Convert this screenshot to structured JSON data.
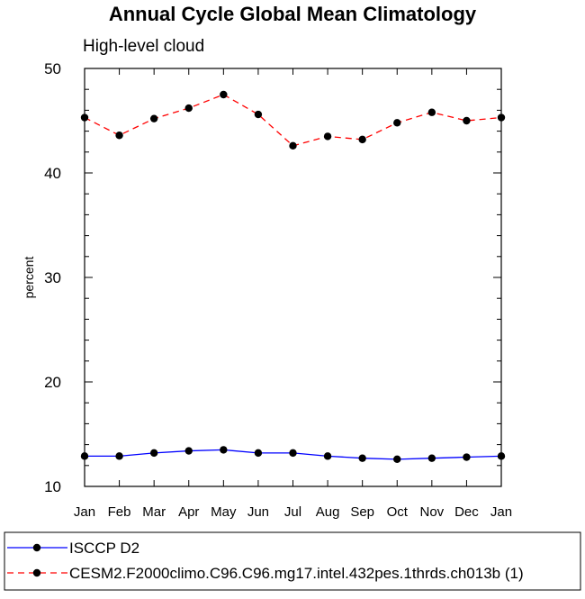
{
  "chart_data": {
    "type": "line",
    "title": "Annual Cycle Global Mean Climatology",
    "subtitle": "High-level cloud",
    "xlabel": "",
    "ylabel": "percent",
    "categories": [
      "Jan",
      "Feb",
      "Mar",
      "Apr",
      "May",
      "Jun",
      "Jul",
      "Aug",
      "Sep",
      "Oct",
      "Nov",
      "Dec",
      "Jan"
    ],
    "ylim": [
      10,
      50
    ],
    "yticks": [
      10,
      20,
      30,
      40,
      50
    ],
    "grid": false,
    "legend_position": "bottom",
    "series": [
      {
        "name": "ISCCP D2",
        "color": "#0000ff",
        "line_style": "solid",
        "values": [
          12.9,
          12.9,
          13.2,
          13.4,
          13.5,
          13.2,
          13.2,
          12.9,
          12.7,
          12.6,
          12.7,
          12.8,
          12.9
        ]
      },
      {
        "name": "CESM2.F2000climo.C96.C96.mg17.intel.432pes.1thrds.ch013b (1)",
        "color": "#ff0000",
        "line_style": "dashed",
        "values": [
          45.3,
          43.6,
          45.2,
          46.2,
          47.5,
          45.6,
          42.6,
          43.5,
          43.2,
          44.8,
          45.8,
          45.0,
          45.3
        ]
      }
    ]
  }
}
